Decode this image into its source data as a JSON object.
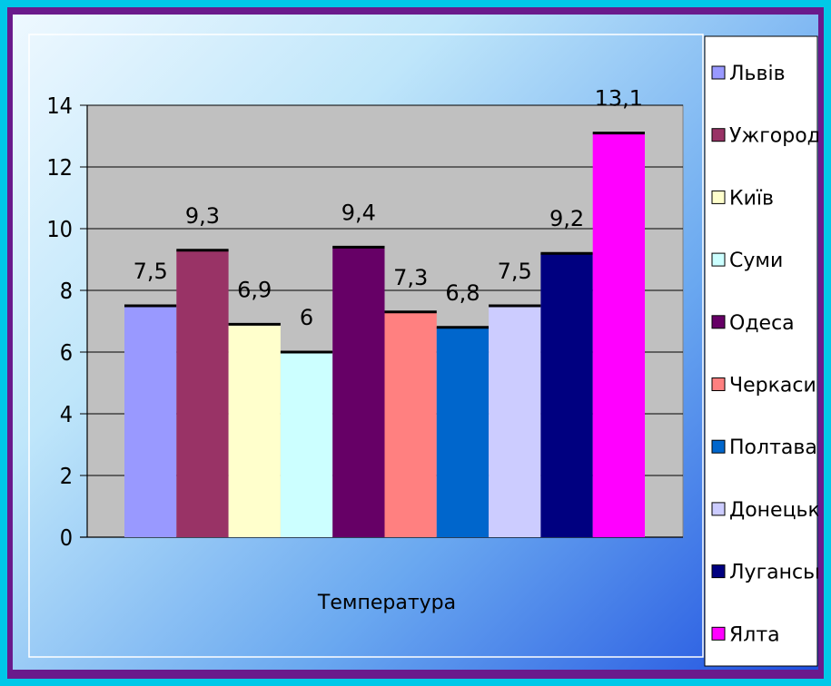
{
  "chart_data": {
    "type": "bar",
    "title": "",
    "xlabel": "Температура",
    "ylabel": "",
    "categories": [
      "Температура"
    ],
    "ylim": [
      0,
      14
    ],
    "yticks": [
      0,
      2,
      4,
      6,
      8,
      10,
      12,
      14
    ],
    "grid": true,
    "legend_position": "right",
    "series": [
      {
        "name": "Львів",
        "value": 7.5,
        "label": "7,5",
        "color": "#9999ff"
      },
      {
        "name": "Ужгород",
        "value": 9.3,
        "label": "9,3",
        "color": "#993366"
      },
      {
        "name": "Київ",
        "value": 6.9,
        "label": "6,9",
        "color": "#ffffcc"
      },
      {
        "name": "Суми",
        "value": 6.0,
        "label": "6",
        "color": "#ccffff"
      },
      {
        "name": "Одеса",
        "value": 9.4,
        "label": "9,4",
        "color": "#660066"
      },
      {
        "name": "Черкаси",
        "value": 7.3,
        "label": "7,3",
        "color": "#ff8080"
      },
      {
        "name": "Полтава",
        "value": 6.8,
        "label": "6,8",
        "color": "#0066cc"
      },
      {
        "name": "Донецьк",
        "value": 7.5,
        "label": "7,5",
        "color": "#ccccff"
      },
      {
        "name": "Луганськ",
        "value": 9.2,
        "label": "9,2",
        "color": "#000080"
      },
      {
        "name": "Ялта",
        "value": 13.1,
        "label": "13,1",
        "color": "#ff00ff"
      }
    ],
    "plot_background": "#c0c0c0"
  }
}
